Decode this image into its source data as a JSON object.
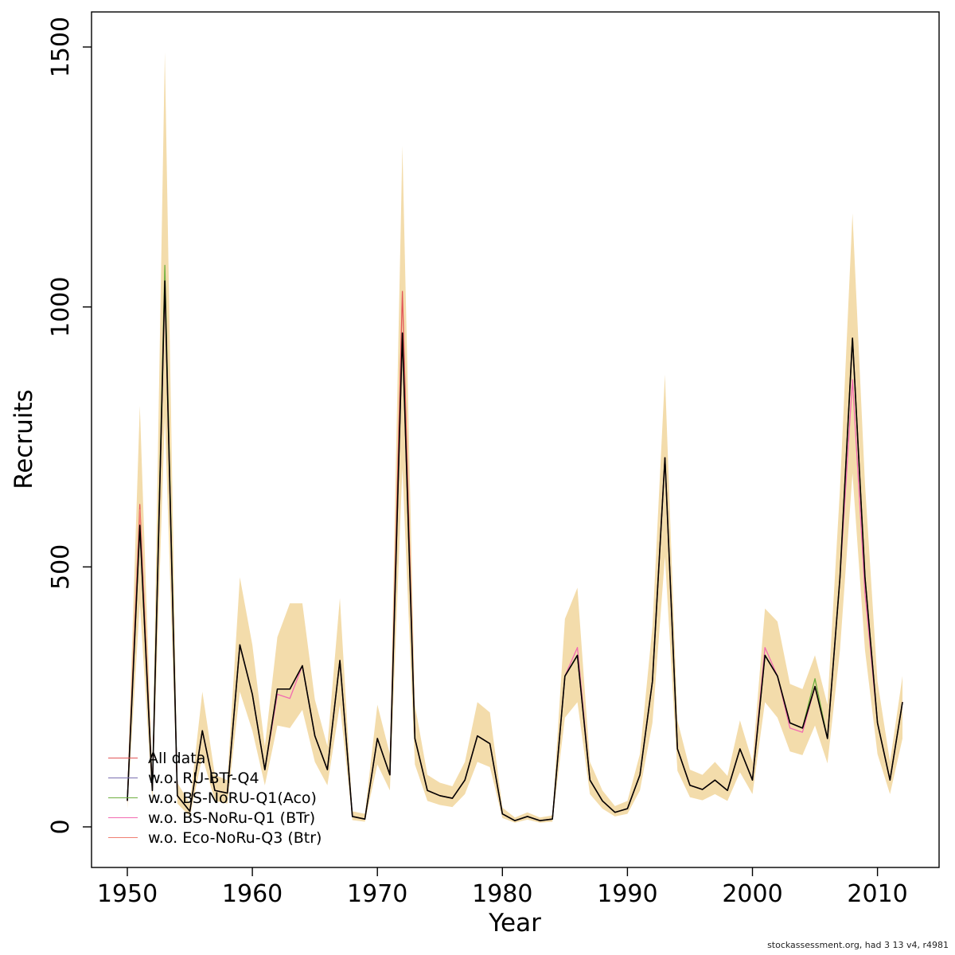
{
  "figure": {
    "ylabel": "Recruits",
    "xlabel": "Year",
    "footer": "stockassessment.org, had 3 13 v4, r4981"
  },
  "chart_data": {
    "type": "line",
    "title": "",
    "xlabel": "Year",
    "ylabel": "Recruits",
    "xlim": [
      1950,
      2012
    ],
    "ylim": [
      0,
      1500
    ],
    "x_ticks": [
      1950,
      1960,
      1970,
      1980,
      1990,
      2000,
      2010
    ],
    "y_ticks": [
      0,
      500,
      1000,
      1500
    ],
    "grid": false,
    "legend_position": "bottomleft",
    "x": [
      1950,
      1951,
      1952,
      1953,
      1954,
      1955,
      1956,
      1957,
      1958,
      1959,
      1960,
      1961,
      1962,
      1963,
      1964,
      1965,
      1966,
      1967,
      1968,
      1969,
      1970,
      1971,
      1972,
      1973,
      1974,
      1975,
      1976,
      1977,
      1978,
      1979,
      1980,
      1981,
      1982,
      1983,
      1984,
      1985,
      1986,
      1987,
      1988,
      1989,
      1990,
      1991,
      1992,
      1993,
      1994,
      1995,
      1996,
      1997,
      1998,
      1999,
      2000,
      2001,
      2002,
      2003,
      2004,
      2005,
      2006,
      2007,
      2008,
      2009,
      2010,
      2011,
      2012
    ],
    "base": {
      "name": "central estimate",
      "color": "#000000",
      "values": [
        50,
        580,
        70,
        1050,
        60,
        30,
        185,
        70,
        65,
        350,
        255,
        110,
        265,
        265,
        310,
        175,
        110,
        320,
        20,
        15,
        170,
        100,
        950,
        170,
        70,
        60,
        55,
        90,
        175,
        160,
        25,
        12,
        20,
        12,
        15,
        290,
        330,
        90,
        50,
        28,
        35,
        100,
        280,
        710,
        150,
        80,
        72,
        90,
        70,
        150,
        90,
        330,
        290,
        200,
        190,
        270,
        170,
        480,
        940,
        480,
        200,
        90,
        240
      ]
    },
    "band": {
      "name": "confidence band",
      "color": "#f3dcab",
      "low": [
        35,
        430,
        50,
        790,
        45,
        20,
        135,
        50,
        45,
        260,
        185,
        80,
        195,
        190,
        225,
        125,
        80,
        235,
        13,
        10,
        120,
        70,
        690,
        120,
        50,
        42,
        38,
        63,
        125,
        115,
        17,
        8,
        14,
        8,
        10,
        210,
        240,
        63,
        35,
        20,
        25,
        70,
        200,
        520,
        108,
        57,
        51,
        63,
        50,
        105,
        63,
        240,
        210,
        145,
        138,
        195,
        122,
        340,
        680,
        340,
        140,
        63,
        170
      ],
      "high": [
        70,
        810,
        100,
        1490,
        85,
        45,
        260,
        100,
        90,
        480,
        350,
        155,
        365,
        430,
        430,
        245,
        155,
        440,
        30,
        25,
        235,
        140,
        1310,
        235,
        100,
        85,
        78,
        125,
        240,
        220,
        37,
        18,
        28,
        18,
        22,
        400,
        460,
        125,
        70,
        40,
        50,
        140,
        385,
        870,
        205,
        110,
        100,
        125,
        98,
        205,
        125,
        420,
        395,
        275,
        265,
        330,
        235,
        650,
        1180,
        660,
        280,
        125,
        290
      ]
    },
    "series": [
      {
        "name": "All data",
        "color": "#e25658",
        "overrides": {
          "1951": 620,
          "1972": 1030
        }
      },
      {
        "name": "w.o. RU-BTr-Q4",
        "color": "#7a6fb0",
        "overrides": {}
      },
      {
        "name": "w.o. BS-NoRU-Q1(Aco)",
        "color": "#6fae3e",
        "overrides": {
          "1953": 1080,
          "2005": 285
        }
      },
      {
        "name": "w.o. BS-NoRu-Q1 (BTr)",
        "color": "#f26ab0",
        "overrides": {
          "1962": 255,
          "1963": 247,
          "1986": 345,
          "2001": 345,
          "2003": 190,
          "2004": 182,
          "2008": 860,
          "2009": 450
        }
      },
      {
        "name": "w.o. Eco-NoRu-Q3 (Btr)",
        "color": "#ef7e72",
        "overrides": {
          "1951": 610
        }
      }
    ]
  }
}
